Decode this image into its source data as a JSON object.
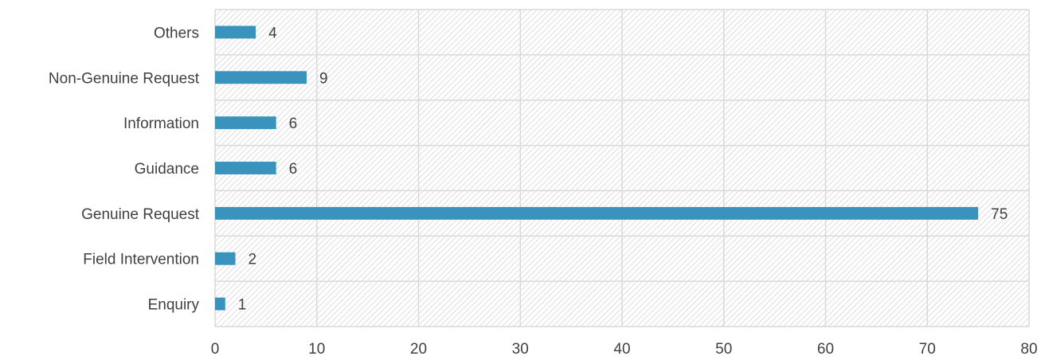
{
  "chart_data": {
    "type": "bar",
    "orientation": "horizontal",
    "categories": [
      "Enquiry",
      "Field Intervention",
      "Genuine Request",
      "Guidance",
      "Information",
      "Non-Genuine Request",
      "Others"
    ],
    "values": [
      1,
      2,
      75,
      6,
      6,
      9,
      4
    ],
    "xlim": [
      0,
      80
    ],
    "xticks": [
      0,
      10,
      20,
      30,
      40,
      50,
      60,
      70,
      80
    ],
    "title": "",
    "xlabel": "",
    "ylabel": "",
    "grid": true,
    "data_labels": true,
    "legend": "none",
    "colors": {
      "bar": "#3a93bd",
      "grid": "#d9d9d9",
      "hatch": "#d0d0d0",
      "text": "#404040"
    }
  }
}
